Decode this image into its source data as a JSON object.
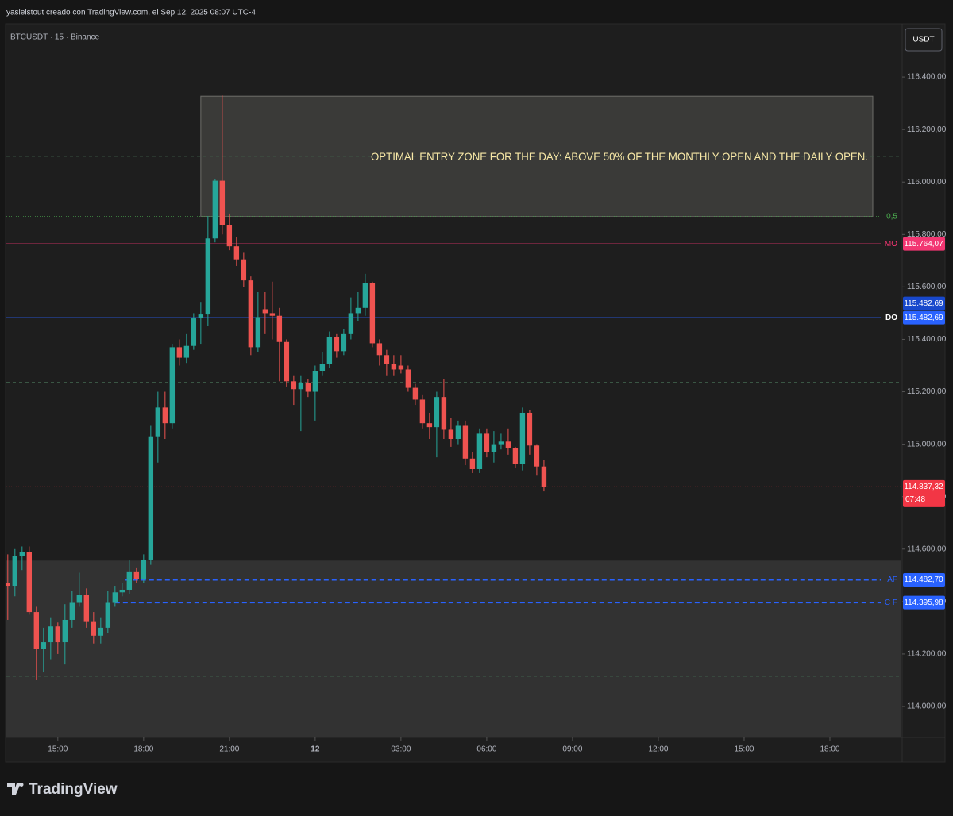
{
  "header": {
    "credit": "yasielstout creado con TradingView.com, el Sep 12, 2025 08:07 UTC-4",
    "symbol": "BTCUSDT · 15 · Binance",
    "currency": "USDT"
  },
  "footer": {
    "brand": "TradingView"
  },
  "chart_data": {
    "type": "candlestick",
    "up_color": "#26a69a",
    "down_color": "#ef5350",
    "xlim": [
      13.2,
      44.5
    ],
    "xticks": [
      {
        "value": 15,
        "label": "15:00"
      },
      {
        "value": 18,
        "label": "18:00"
      },
      {
        "value": 21,
        "label": "21:00"
      },
      {
        "value": 24,
        "label": "12"
      },
      {
        "value": 27,
        "label": "03:00"
      },
      {
        "value": 30,
        "label": "06:00"
      },
      {
        "value": 33,
        "label": "09:00"
      },
      {
        "value": 36,
        "label": "12:00"
      },
      {
        "value": 39,
        "label": "15:00"
      },
      {
        "value": 42,
        "label": "18:00"
      }
    ],
    "ylim": [
      113885,
      116600
    ],
    "yticks": [
      {
        "value": 114000,
        "label": "114.000,00"
      },
      {
        "value": 114200,
        "label": "114.200,00"
      },
      {
        "value": 114400,
        "label": "114.400,00"
      },
      {
        "value": 114600,
        "label": "114.600,00"
      },
      {
        "value": 114800,
        "label": "114.800,00"
      },
      {
        "value": 115000,
        "label": "115.000,00"
      },
      {
        "value": 115200,
        "label": "115.200,00"
      },
      {
        "value": 115400,
        "label": "115.400,00"
      },
      {
        "value": 115600,
        "label": "115.600,00"
      },
      {
        "value": 115800,
        "label": "115.800,00"
      },
      {
        "value": 116000,
        "label": "116.000,00"
      },
      {
        "value": 116200,
        "label": "116.200,00"
      },
      {
        "value": 116400,
        "label": "116.400,00"
      }
    ],
    "x": [
      13.25,
      13.5,
      13.75,
      14,
      14.25,
      14.5,
      14.75,
      15,
      15.25,
      15.5,
      15.75,
      16,
      16.25,
      16.5,
      16.75,
      17,
      17.25,
      17.5,
      17.75,
      18,
      18.25,
      18.5,
      18.75,
      19,
      19.25,
      19.5,
      19.75,
      20,
      20.25,
      20.5,
      20.75,
      21,
      21.25,
      21.5,
      21.75,
      22,
      22.25,
      22.5,
      22.75,
      23,
      23.25,
      23.5,
      23.75,
      24,
      24.25,
      24.5,
      24.75,
      25,
      25.25,
      25.5,
      25.75,
      26,
      26.25,
      26.5,
      26.75,
      27,
      27.25,
      27.5,
      27.75,
      28,
      28.25,
      28.5,
      28.75,
      29,
      29.25,
      29.5,
      29.75,
      30,
      30.25,
      30.5,
      30.75,
      31,
      31.25,
      31.5,
      31.75,
      32
    ],
    "open": [
      114470,
      114460,
      114575,
      114590,
      114360,
      114220,
      114245,
      114305,
      114245,
      114330,
      114395,
      114425,
      114325,
      114270,
      114300,
      114395,
      114435,
      114445,
      114515,
      114485,
      114560,
      115030,
      115140,
      115080,
      115370,
      115330,
      115375,
      115480,
      115495,
      115785,
      116005,
      115835,
      115755,
      115705,
      115625,
      115370,
      115515,
      115500,
      115490,
      115390,
      115240,
      115210,
      115235,
      115200,
      115280,
      115305,
      115410,
      115355,
      115420,
      115500,
      115520,
      115615,
      115385,
      115340,
      115305,
      115300,
      115285,
      115215,
      115170,
      115080,
      115065,
      115180,
      115055,
      115020,
      115070,
      114945,
      114905,
      115040,
      114970,
      115000,
      115010,
      114985,
      114925,
      115120,
      114995,
      114915
    ],
    "high": [
      114580,
      114600,
      114610,
      114610,
      114380,
      114300,
      114340,
      114320,
      114390,
      114440,
      114510,
      114450,
      114360,
      114340,
      114440,
      114460,
      114470,
      114560,
      114530,
      114580,
      115070,
      115200,
      115200,
      115380,
      115400,
      115420,
      115500,
      115540,
      115870,
      116010,
      116330,
      115880,
      115790,
      115730,
      115640,
      115580,
      115580,
      115620,
      115520,
      115400,
      115260,
      115260,
      115250,
      115300,
      115350,
      115430,
      115420,
      115440,
      115560,
      115580,
      115650,
      115620,
      115400,
      115360,
      115340,
      115340,
      115300,
      115230,
      115190,
      115120,
      115200,
      115250,
      115100,
      115090,
      115090,
      114970,
      115060,
      115060,
      115050,
      115040,
      115060,
      114990,
      115140,
      115130,
      115000,
      114940
    ],
    "low": [
      114330,
      114420,
      114520,
      114350,
      114100,
      114130,
      114180,
      114200,
      114160,
      114300,
      114380,
      114300,
      114240,
      114240,
      114280,
      114380,
      114420,
      114430,
      114470,
      114470,
      114540,
      114930,
      115020,
      115060,
      115300,
      115310,
      115360,
      115380,
      115450,
      115770,
      115800,
      115740,
      115680,
      115600,
      115340,
      115350,
      115420,
      115400,
      115240,
      115220,
      115150,
      115050,
      115180,
      115090,
      115260,
      115290,
      115330,
      115340,
      115400,
      115470,
      115490,
      115370,
      115300,
      115260,
      115260,
      115270,
      115200,
      115150,
      115060,
      115020,
      114950,
      115020,
      114990,
      115000,
      114920,
      114890,
      114890,
      114950,
      114930,
      114980,
      114960,
      114910,
      114900,
      114960,
      114880,
      114820
    ],
    "close": [
      114460,
      114575,
      114590,
      114360,
      114220,
      114245,
      114305,
      114245,
      114330,
      114395,
      114425,
      114325,
      114270,
      114300,
      114395,
      114435,
      114445,
      114515,
      114485,
      114560,
      115030,
      115140,
      115080,
      115370,
      115330,
      115375,
      115480,
      115495,
      115785,
      116005,
      115835,
      115755,
      115705,
      115625,
      115370,
      115485,
      115500,
      115490,
      115390,
      115240,
      115210,
      115235,
      115200,
      115280,
      115305,
      115410,
      115355,
      115420,
      115500,
      115520,
      115615,
      115385,
      115340,
      115305,
      115285,
      115285,
      115215,
      115170,
      115080,
      115065,
      115180,
      115055,
      115020,
      115070,
      114945,
      114905,
      115040,
      114970,
      115000,
      115010,
      114985,
      114925,
      115120,
      114995,
      114915,
      114837.32
    ],
    "zones": [
      {
        "x": [
          20.0,
          43.5
        ],
        "y": [
          115868,
          116327
        ],
        "fill": "#3a3a38",
        "stroke": "#6e6e6a"
      },
      {
        "x": [
          13.2,
          44.5
        ],
        "y": [
          113880,
          114556
        ],
        "fill": "#323232"
      }
    ],
    "annotation": {
      "text": "OPTIMAL ENTRY ZONE FOR THE DAY: ABOVE 50% OF THE MONTHLY OPEN AND THE DAILY OPEN.",
      "color": "#f7e7a6"
    },
    "levels": [
      {
        "value": 116098,
        "color": "#3f5f4a",
        "style": "dashed"
      },
      {
        "value": 115868,
        "name": "0,5",
        "color": "#4caf50",
        "style": "dotted"
      },
      {
        "value": 115764.07,
        "name": "MO",
        "label": "115.764,07",
        "color": "#f23672",
        "style": "solid"
      },
      {
        "value": 115482.69,
        "name": "DO",
        "label": "115.482,69",
        "label_extra": "115.482,69",
        "color": "#2962ff",
        "style": "solid"
      },
      {
        "value": 115236,
        "color": "#3f5f4a",
        "style": "dashed"
      },
      {
        "value": 114837.32,
        "label": "114.837,32",
        "countdown": "07:48",
        "color": "#f23645",
        "style": "dotted"
      },
      {
        "value": 114482.7,
        "name": "AF",
        "label": "114.482,70",
        "color": "#2962ff",
        "style": "bold-dashed",
        "from": 17.36
      },
      {
        "value": 114395.98,
        "name": "C F",
        "label": "114.395,98",
        "color": "#2962ff",
        "style": "bold-dashed",
        "from": 17.0
      },
      {
        "value": 114115,
        "color": "#3f5f4a",
        "style": "dashed"
      }
    ]
  }
}
